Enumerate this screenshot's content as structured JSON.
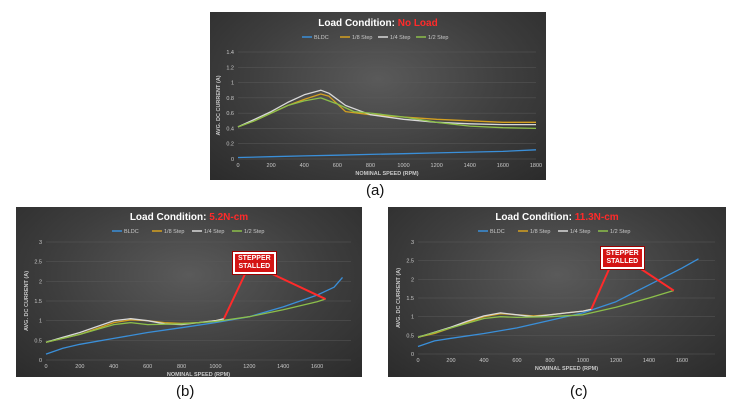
{
  "colors": {
    "bldc": "#3a8fd9",
    "step18": "#d4a020",
    "step14": "#d9d9d9",
    "step12": "#8cbf4a",
    "accent_red": "#ff2a2a",
    "grid": "#5a5a5a"
  },
  "captions": [
    "(a)",
    "(b)",
    "(c)"
  ],
  "callout_text": "STEPPER\nSTALLED",
  "chart_data": [
    {
      "type": "line",
      "title_prefix": "Load Condition: ",
      "title_highlight": "No Load",
      "xlabel": "NOMINAL SPEED (RPM)",
      "ylabel": "AVG. DC CURRENT (A)",
      "xlim": [
        0,
        1800
      ],
      "ylim": [
        0,
        1.4
      ],
      "xticks": [
        0,
        200,
        400,
        600,
        800,
        1000,
        1200,
        1400,
        1600,
        1800
      ],
      "yticks": [
        0,
        0.2,
        0.4,
        0.6,
        0.8,
        1,
        1.2,
        1.4
      ],
      "ytick_labels": [
        "0",
        "0.2",
        "0.4",
        "0.6",
        "0.8",
        "1",
        "1.2",
        "1.4"
      ],
      "grid": true,
      "legend_position": "top",
      "series": [
        {
          "name": "BLDC",
          "color_key": "bldc",
          "x": [
            0,
            200,
            400,
            600,
            800,
            1000,
            1200,
            1400,
            1600,
            1800
          ],
          "y": [
            0.02,
            0.03,
            0.04,
            0.05,
            0.06,
            0.07,
            0.08,
            0.09,
            0.1,
            0.12
          ]
        },
        {
          "name": "1/8 Step",
          "color_key": "step18",
          "x": [
            0,
            100,
            200,
            300,
            400,
            500,
            550,
            650,
            800,
            1000,
            1200,
            1400,
            1600,
            1800
          ],
          "y": [
            0.42,
            0.5,
            0.6,
            0.7,
            0.78,
            0.85,
            0.82,
            0.62,
            0.58,
            0.55,
            0.52,
            0.5,
            0.48,
            0.48
          ]
        },
        {
          "name": "1/4 Step",
          "color_key": "step14",
          "x": [
            0,
            100,
            200,
            300,
            400,
            500,
            550,
            650,
            800,
            1000,
            1200,
            1400,
            1600,
            1800
          ],
          "y": [
            0.42,
            0.52,
            0.62,
            0.74,
            0.84,
            0.9,
            0.86,
            0.7,
            0.58,
            0.52,
            0.48,
            0.46,
            0.45,
            0.45
          ]
        },
        {
          "name": "1/2 Step",
          "color_key": "step12",
          "x": [
            0,
            100,
            200,
            300,
            400,
            500,
            600,
            700,
            800,
            1000,
            1200,
            1400,
            1600,
            1800
          ],
          "y": [
            0.42,
            0.5,
            0.6,
            0.7,
            0.76,
            0.8,
            0.72,
            0.62,
            0.6,
            0.55,
            0.48,
            0.43,
            0.41,
            0.4
          ]
        }
      ]
    },
    {
      "type": "line",
      "title_prefix": "Load Condition: ",
      "title_highlight": "5.2N-cm",
      "xlabel": "NOMINAL SPEED (RPM)",
      "ylabel": "AVG. DC CURRENT (A)",
      "xlim": [
        0,
        1800
      ],
      "ylim": [
        0,
        3
      ],
      "xticks": [
        0,
        200,
        400,
        600,
        800,
        1000,
        1200,
        1400,
        1600
      ],
      "yticks": [
        0,
        0.5,
        1,
        1.5,
        2,
        2.5,
        3
      ],
      "ytick_labels": [
        "0",
        "0.5",
        "1",
        "1.5",
        "2",
        "2.5",
        "3"
      ],
      "grid": true,
      "legend_position": "top",
      "series": [
        {
          "name": "BLDC",
          "color_key": "bldc",
          "x": [
            0,
            100,
            200,
            400,
            600,
            800,
            1000,
            1200,
            1400,
            1600,
            1700,
            1750
          ],
          "y": [
            0.15,
            0.3,
            0.4,
            0.55,
            0.7,
            0.82,
            0.95,
            1.1,
            1.35,
            1.65,
            1.85,
            2.1
          ]
        },
        {
          "name": "1/8 Step",
          "color_key": "step18",
          "x": [
            0,
            100,
            200,
            300,
            400,
            500,
            600,
            700,
            800,
            900,
            1000,
            1050
          ],
          "y": [
            0.45,
            0.55,
            0.65,
            0.8,
            0.95,
            1.02,
            1.0,
            0.95,
            0.93,
            0.95,
            1.0,
            1.05
          ]
        },
        {
          "name": "1/4 Step",
          "color_key": "step14",
          "x": [
            0,
            100,
            200,
            300,
            400,
            500,
            600,
            700,
            800,
            900,
            1000,
            1050
          ],
          "y": [
            0.45,
            0.58,
            0.7,
            0.85,
            1.0,
            1.05,
            1.0,
            0.92,
            0.9,
            0.95,
            1.0,
            1.05
          ]
        },
        {
          "name": "1/2 Step",
          "color_key": "step12",
          "x": [
            0,
            200,
            400,
            500,
            600,
            800,
            1000,
            1200,
            1400,
            1600,
            1650
          ],
          "y": [
            0.45,
            0.65,
            0.9,
            0.95,
            0.9,
            0.92,
            0.98,
            1.1,
            1.28,
            1.48,
            1.55
          ]
        }
      ]
    },
    {
      "type": "line",
      "title_prefix": "Load Condition: ",
      "title_highlight": "11.3N-cm",
      "xlabel": "NOMINAL SPEED (RPM)",
      "ylabel": "AVG. DC CURRENT (A)",
      "xlim": [
        0,
        1800
      ],
      "ylim": [
        0,
        3
      ],
      "xticks": [
        0,
        200,
        400,
        600,
        800,
        1000,
        1200,
        1400,
        1600
      ],
      "yticks": [
        0,
        0.5,
        1,
        1.5,
        2,
        2.5,
        3
      ],
      "ytick_labels": [
        "0",
        "0.5",
        "1",
        "1.5",
        "2",
        "2.5",
        "3"
      ],
      "grid": true,
      "legend_position": "top",
      "series": [
        {
          "name": "BLDC",
          "color_key": "bldc",
          "x": [
            0,
            100,
            200,
            400,
            600,
            800,
            1000,
            1200,
            1400,
            1600,
            1700
          ],
          "y": [
            0.2,
            0.35,
            0.42,
            0.55,
            0.7,
            0.9,
            1.1,
            1.4,
            1.85,
            2.3,
            2.55
          ]
        },
        {
          "name": "1/8 Step",
          "color_key": "step18",
          "x": [
            0,
            100,
            200,
            300,
            400,
            500,
            600,
            700,
            800,
            900,
            1000,
            1050
          ],
          "y": [
            0.45,
            0.55,
            0.7,
            0.85,
            1.0,
            1.08,
            1.05,
            1.02,
            1.05,
            1.1,
            1.15,
            1.2
          ]
        },
        {
          "name": "1/4 Step",
          "color_key": "step14",
          "x": [
            0,
            100,
            200,
            300,
            400,
            500,
            600,
            700,
            800,
            900,
            1000,
            1050
          ],
          "y": [
            0.45,
            0.58,
            0.72,
            0.88,
            1.02,
            1.1,
            1.05,
            1.0,
            1.05,
            1.1,
            1.15,
            1.2
          ]
        },
        {
          "name": "1/2 Step",
          "color_key": "step12",
          "x": [
            0,
            200,
            400,
            500,
            600,
            800,
            1000,
            1200,
            1400,
            1550
          ],
          "y": [
            0.45,
            0.7,
            0.95,
            1.0,
            0.98,
            1.0,
            1.05,
            1.25,
            1.5,
            1.7
          ]
        }
      ]
    }
  ]
}
